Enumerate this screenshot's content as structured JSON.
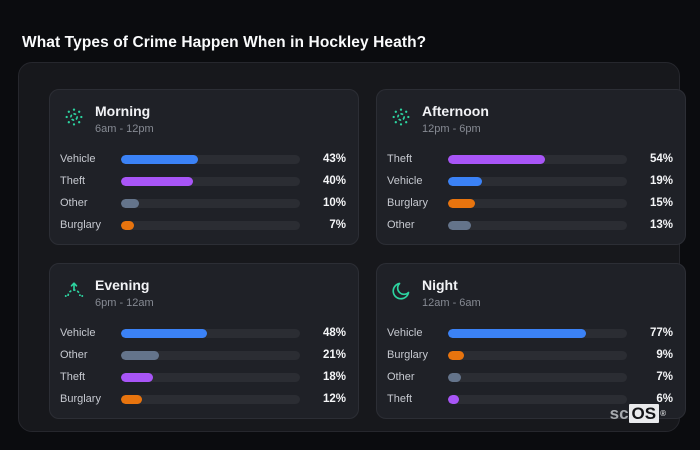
{
  "header": {
    "title": "What Types of Crime Happen When in Hockley Heath?"
  },
  "branding": {
    "prefix": "sc",
    "suffix": "OS",
    "registered": "®"
  },
  "colors": {
    "accent": "#2dd4a0",
    "track": "#2b2d33",
    "Vehicle": "#3b82f6",
    "Theft": "#a855f7",
    "Other": "#64748b",
    "Burglary": "#e8740e"
  },
  "chart_data": [
    {
      "type": "bar",
      "orientation": "horizontal",
      "title": "Morning",
      "subtitle": "6am - 12pm",
      "icon": "sun-icon",
      "categories": [
        "Vehicle",
        "Theft",
        "Other",
        "Burglary"
      ],
      "values": [
        43,
        40,
        10,
        7
      ],
      "value_suffix": "%",
      "xlim": [
        0,
        100
      ],
      "grid": false,
      "legend": "none"
    },
    {
      "type": "bar",
      "orientation": "horizontal",
      "title": "Afternoon",
      "subtitle": "12pm - 6pm",
      "icon": "sun-icon",
      "categories": [
        "Theft",
        "Vehicle",
        "Burglary",
        "Other"
      ],
      "values": [
        54,
        19,
        15,
        13
      ],
      "value_suffix": "%",
      "xlim": [
        0,
        100
      ],
      "grid": false,
      "legend": "none"
    },
    {
      "type": "bar",
      "orientation": "horizontal",
      "title": "Evening",
      "subtitle": "6pm - 12am",
      "icon": "sunrise-icon",
      "categories": [
        "Vehicle",
        "Other",
        "Theft",
        "Burglary"
      ],
      "values": [
        48,
        21,
        18,
        12
      ],
      "value_suffix": "%",
      "xlim": [
        0,
        100
      ],
      "grid": false,
      "legend": "none"
    },
    {
      "type": "bar",
      "orientation": "horizontal",
      "title": "Night",
      "subtitle": "12am - 6am",
      "icon": "moon-icon",
      "categories": [
        "Vehicle",
        "Burglary",
        "Other",
        "Theft"
      ],
      "values": [
        77,
        9,
        7,
        6
      ],
      "value_suffix": "%",
      "xlim": [
        0,
        100
      ],
      "grid": false,
      "legend": "none"
    }
  ]
}
